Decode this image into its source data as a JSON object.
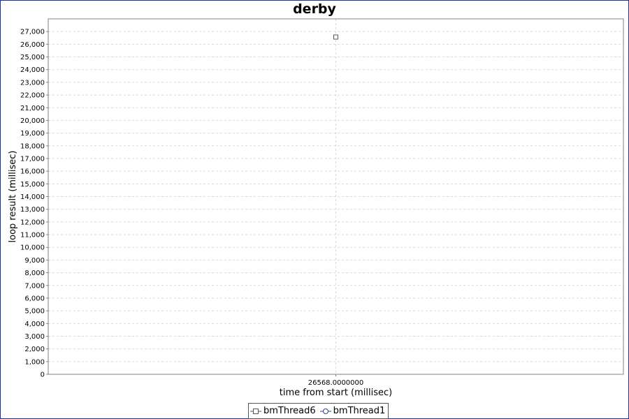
{
  "chart_data": {
    "type": "scatter",
    "title": "derby",
    "xlabel": "time from start (millisec)",
    "ylabel": "loop result (millisec)",
    "x_tick_labels": [
      "26568.0000000"
    ],
    "ylim": [
      0,
      28000
    ],
    "y_ticks": [
      0,
      1000,
      2000,
      3000,
      4000,
      5000,
      6000,
      7000,
      8000,
      9000,
      10000,
      11000,
      12000,
      13000,
      14000,
      15000,
      16000,
      17000,
      18000,
      19000,
      20000,
      21000,
      22000,
      23000,
      24000,
      25000,
      26000,
      27000
    ],
    "y_tick_labels": [
      "0",
      "1,000",
      "2,000",
      "3,000",
      "4,000",
      "5,000",
      "6,000",
      "7,000",
      "8,000",
      "9,000",
      "10,000",
      "11,000",
      "12,000",
      "13,000",
      "14,000",
      "15,000",
      "16,000",
      "17,000",
      "18,000",
      "19,000",
      "20,000",
      "21,000",
      "22,000",
      "23,000",
      "24,000",
      "25,000",
      "26,000",
      "27,000"
    ],
    "grid": true,
    "legend_position": "bottom-center",
    "series": [
      {
        "name": "bmThread6",
        "marker": "square",
        "color": "#555555",
        "x": [
          26568.0
        ],
        "y": [
          26568
        ]
      },
      {
        "name": "bmThread1",
        "marker": "circle",
        "color": "#2a3f8f",
        "x": [],
        "y": []
      }
    ]
  },
  "colors": {
    "frame_border": "#1f2fa8",
    "grid": "#d8d8d8",
    "axis": "#808080"
  }
}
